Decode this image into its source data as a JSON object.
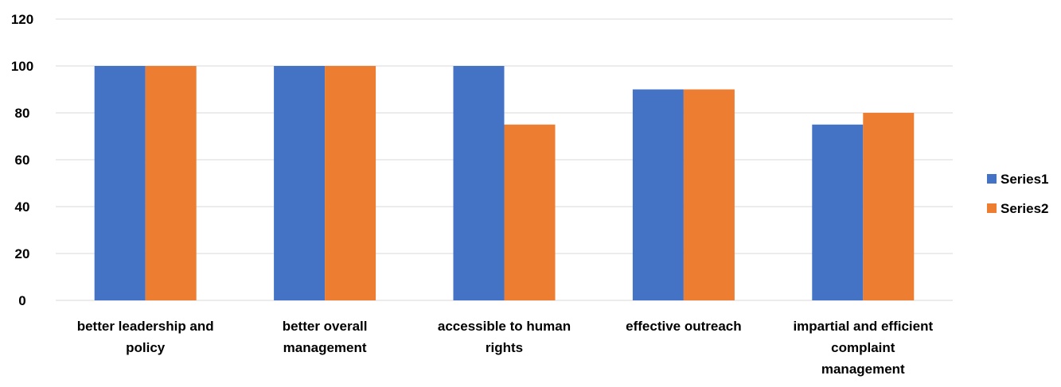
{
  "chart_data": {
    "type": "bar",
    "categories": [
      [
        "better leadership and",
        "policy"
      ],
      [
        "better overall",
        "management"
      ],
      [
        "accessible to human",
        "rights"
      ],
      [
        "effective outreach"
      ],
      [
        "impartial and efficient",
        "complaint",
        "management"
      ]
    ],
    "series": [
      {
        "name": "Series1",
        "color": "#4472C4",
        "values": [
          100,
          100,
          100,
          90,
          75
        ]
      },
      {
        "name": "Series2",
        "color": "#ED7D31",
        "values": [
          100,
          100,
          75,
          90,
          80
        ]
      }
    ],
    "ylim": [
      0,
      120
    ],
    "yticks": [
      0,
      20,
      40,
      60,
      80,
      100,
      120
    ],
    "grid": true,
    "legend_position": "right",
    "title": "",
    "xlabel": "",
    "ylabel": ""
  }
}
